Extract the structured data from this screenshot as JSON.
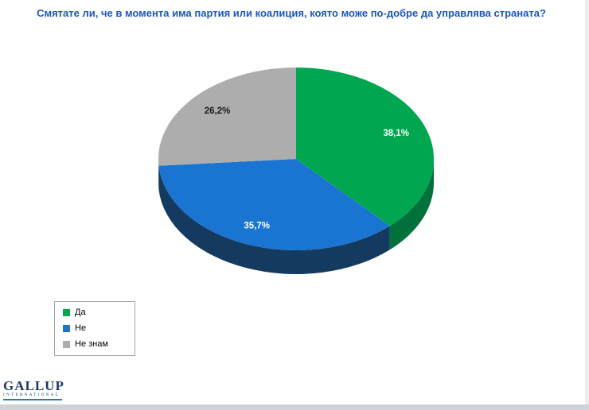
{
  "page": {
    "accent_blue": "#1b57c4",
    "background": "#ffffff"
  },
  "chart_data": {
    "type": "pie",
    "title": "Смятате ли, че в момента има партия или коалиция, която може по-добре да управлява страната?",
    "effect": "3d",
    "start_angle_deg": -90,
    "direction": "clockwise",
    "unit": "%",
    "legend_position": "bottom-left",
    "slices": [
      {
        "label": "Да",
        "value": 38.1,
        "display": "38,1%",
        "color": "#00a650",
        "side_color": "#00713a",
        "label_color": "#ffffff"
      },
      {
        "label": "Не",
        "value": 35.7,
        "display": "35,7%",
        "color": "#1a75d2",
        "side_color": "#143a5f",
        "label_color": "#ffffff"
      },
      {
        "label": "Не знам",
        "value": 26.2,
        "display": "26,2%",
        "color": "#adadad",
        "side_color": "#8f8f8f",
        "label_color": "#1a1a1a"
      }
    ]
  },
  "footer": {
    "logo_text": "GALLUP",
    "logo_subtext": "INTERNATIONAL"
  }
}
